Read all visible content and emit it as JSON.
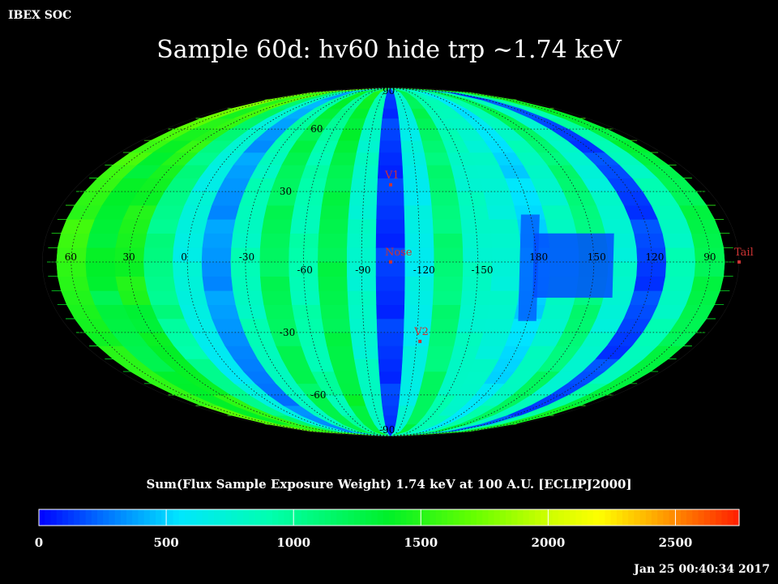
{
  "header": {
    "corner_label": "IBEX SOC",
    "title": "Sample 60d: hv60 hide trp ~1.74 keV",
    "timestamp": "Jan 25 00:40:34 2017"
  },
  "chart_data": {
    "type": "heatmap",
    "projection": "mollweide",
    "frame": "ECLIPJ2000",
    "title": "Sample 60d: hv60 hide trp ~1.74 keV",
    "colorbar_label": "Sum(Flux Sample Exposure Weight)  1.74 keV at 100 A.U. [ECLIPJ2000]",
    "colorbar_range": [
      0,
      2750
    ],
    "colorbar_ticks": [
      "0",
      "500",
      "1000",
      "1500",
      "2000",
      "2500"
    ],
    "colorbar_tick_values": [
      0,
      500,
      1000,
      1500,
      2000,
      2500
    ],
    "center_longitude": -105,
    "longitude_labels": [
      "60",
      "30",
      "0",
      "-30",
      "-60",
      "-90",
      "-120",
      "-150",
      "180",
      "150",
      "120",
      "90"
    ],
    "latitude_labels": [
      "90",
      "60",
      "30",
      "-30",
      "-60",
      "-90"
    ],
    "grid": true,
    "column_profile": [
      {
        "lon": 75,
        "value": 1480
      },
      {
        "lon": 60,
        "value": 1550
      },
      {
        "lon": 45,
        "value": 1350
      },
      {
        "lon": 30,
        "value": 1450
      },
      {
        "lon": 15,
        "value": 1050
      },
      {
        "lon": 0,
        "value": 700
      },
      {
        "lon": -15,
        "value": 350
      },
      {
        "lon": -30,
        "value": 850
      },
      {
        "lon": -45,
        "value": 1200
      },
      {
        "lon": -60,
        "value": 900
      },
      {
        "lon": -75,
        "value": 1250
      },
      {
        "lon": -90,
        "value": 780
      },
      {
        "lon": -105,
        "value": 120
      },
      {
        "lon": -120,
        "value": 650
      },
      {
        "lon": -135,
        "value": 1100
      },
      {
        "lon": -150,
        "value": 800
      },
      {
        "lon": -165,
        "value": 750
      },
      {
        "lon": 180,
        "value": 520
      },
      {
        "lon": 165,
        "value": 800
      },
      {
        "lon": 150,
        "value": 1100
      },
      {
        "lon": 135,
        "value": 750
      },
      {
        "lon": 120,
        "value": 150
      },
      {
        "lon": 105,
        "value": 850
      },
      {
        "lon": 90,
        "value": 1250
      }
    ],
    "markers": [
      {
        "label": "V1",
        "lon": -105,
        "lat": 33
      },
      {
        "label": "Nose",
        "lon": -105,
        "lat": 0
      },
      {
        "label": "V2",
        "lon": -122,
        "lat": -34
      },
      {
        "label": "Tail",
        "lon": 75,
        "lat": 0
      }
    ],
    "colors": {
      "marker": "#cc3333",
      "grid": "#1a1a1a",
      "colorbar_outline": "#ffffff"
    }
  }
}
